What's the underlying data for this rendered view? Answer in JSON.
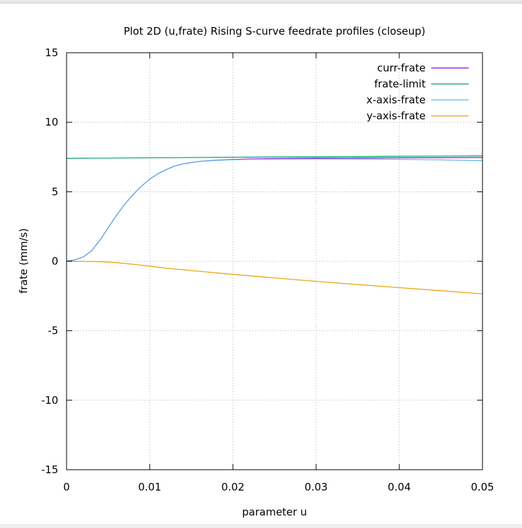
{
  "chart_data": {
    "type": "line",
    "title": "Plot 2D (u,frate) Rising S-curve feedrate profiles (closeup)",
    "xlabel": "parameter u",
    "ylabel": "frate (mm/s)",
    "xlim": [
      0,
      0.05
    ],
    "ylim": [
      -15,
      15
    ],
    "xticks": [
      0,
      0.01,
      0.02,
      0.03,
      0.04,
      0.05
    ],
    "xtick_labels": [
      "0",
      "0.01",
      "0.02",
      "0.03",
      "0.04",
      "0.05"
    ],
    "yticks": [
      -15,
      -10,
      -5,
      0,
      5,
      10,
      15
    ],
    "ytick_labels": [
      "-15",
      "-10",
      "-5",
      "0",
      "5",
      "10",
      "15"
    ],
    "grid": true,
    "legend_position": "top-right",
    "series": [
      {
        "name": "curr-frate",
        "color": "#9400d3",
        "x": [
          0,
          0.001,
          0.002,
          0.003,
          0.004,
          0.005,
          0.006,
          0.007,
          0.008,
          0.009,
          0.01,
          0.011,
          0.012,
          0.013,
          0.014,
          0.015,
          0.016,
          0.018,
          0.02,
          0.022,
          0.025,
          0.03,
          0.035,
          0.04,
          0.045,
          0.05
        ],
        "values": [
          0,
          0.1,
          0.3,
          0.75,
          1.5,
          2.4,
          3.3,
          4.1,
          4.8,
          5.4,
          5.9,
          6.3,
          6.6,
          6.85,
          7.0,
          7.1,
          7.18,
          7.27,
          7.32,
          7.36,
          7.39,
          7.42,
          7.43,
          7.44,
          7.45,
          7.46
        ]
      },
      {
        "name": "frate-limit",
        "color": "#009e73",
        "x": [
          0,
          0.01,
          0.02,
          0.03,
          0.04,
          0.05
        ],
        "values": [
          7.4,
          7.44,
          7.48,
          7.52,
          7.55,
          7.58
        ]
      },
      {
        "name": "x-axis-frate",
        "color": "#56b4e9",
        "x": [
          0,
          0.001,
          0.002,
          0.003,
          0.004,
          0.005,
          0.006,
          0.007,
          0.008,
          0.009,
          0.01,
          0.011,
          0.012,
          0.013,
          0.014,
          0.015,
          0.016,
          0.018,
          0.02,
          0.022,
          0.025,
          0.03,
          0.035,
          0.04,
          0.045,
          0.05
        ],
        "values": [
          0,
          0.1,
          0.3,
          0.75,
          1.5,
          2.4,
          3.3,
          4.1,
          4.8,
          5.4,
          5.9,
          6.3,
          6.6,
          6.85,
          7.0,
          7.1,
          7.18,
          7.26,
          7.3,
          7.33,
          7.35,
          7.36,
          7.35,
          7.33,
          7.29,
          7.23
        ]
      },
      {
        "name": "y-axis-frate",
        "color": "#e69f00",
        "x": [
          0,
          0.002,
          0.004,
          0.006,
          0.008,
          0.01,
          0.012,
          0.015,
          0.02,
          0.025,
          0.03,
          0.035,
          0.04,
          0.045,
          0.05
        ],
        "values": [
          0,
          -0.01,
          -0.03,
          -0.1,
          -0.22,
          -0.35,
          -0.5,
          -0.67,
          -0.95,
          -1.2,
          -1.45,
          -1.68,
          -1.9,
          -2.12,
          -2.35
        ]
      }
    ]
  }
}
